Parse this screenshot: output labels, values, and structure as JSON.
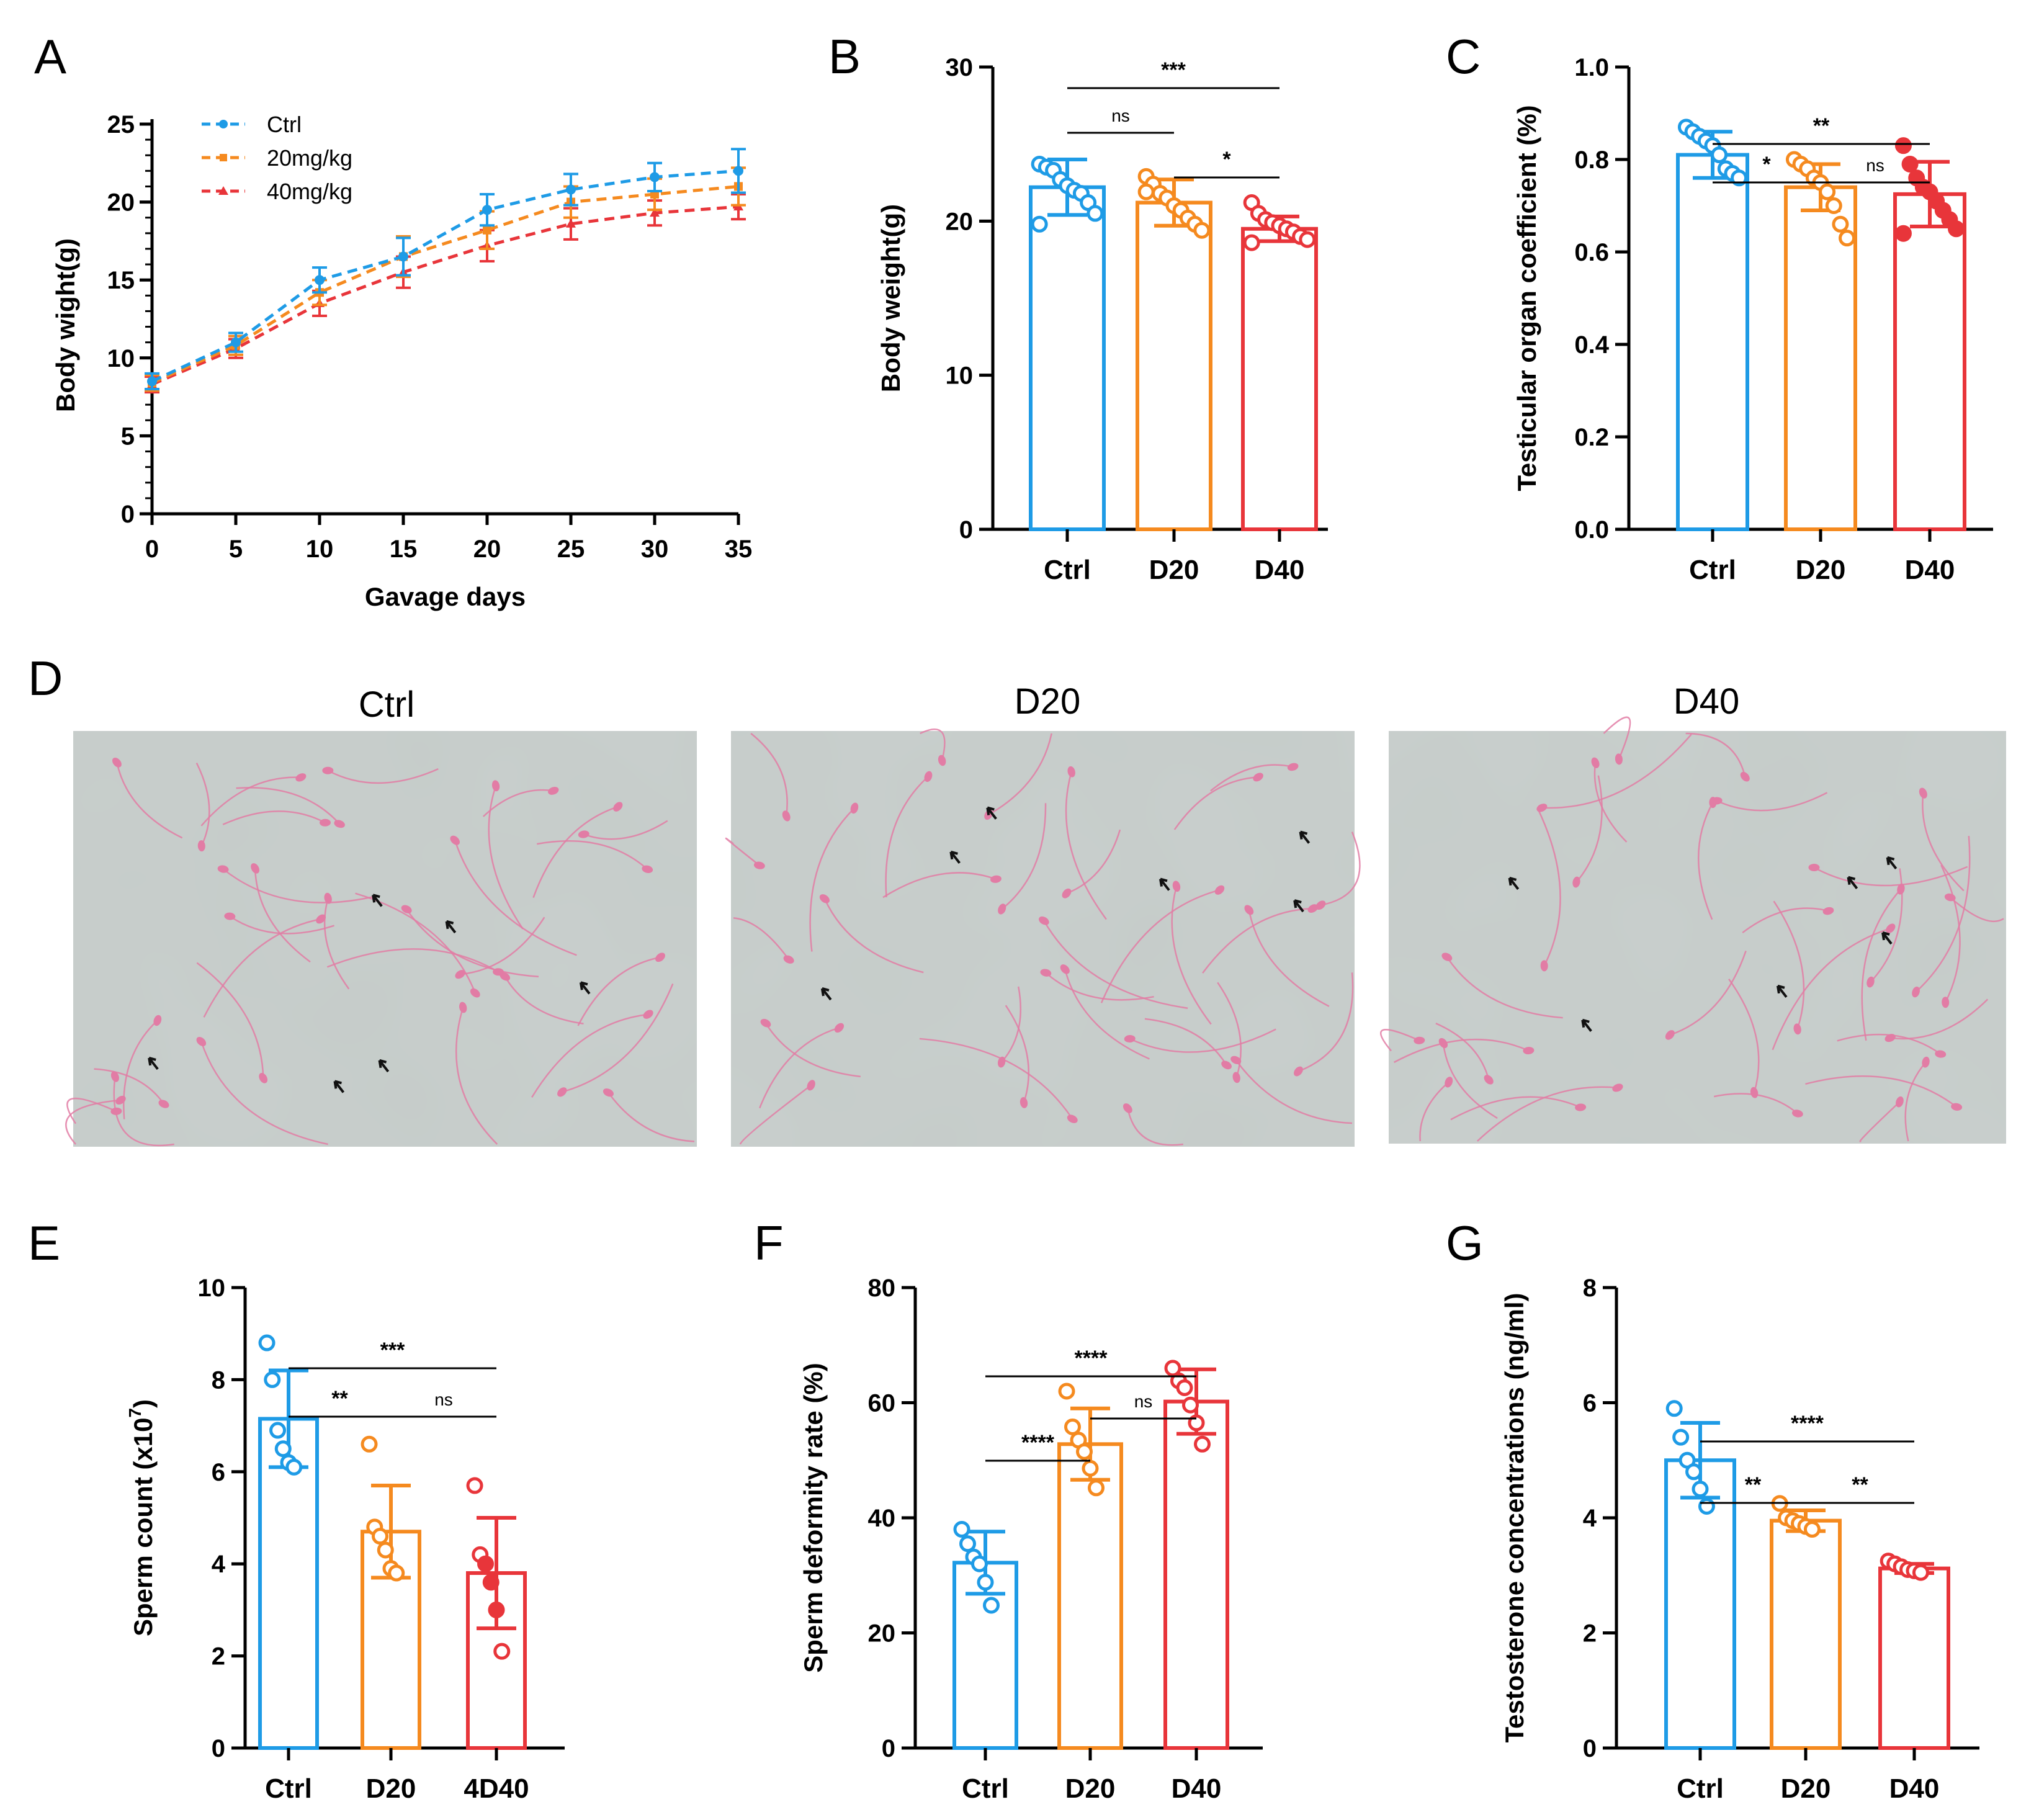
{
  "colors": {
    "ctrl": "#1e9be6",
    "d20": "#f58a1f",
    "d40": "#e8353a",
    "stain": "#e27ca5",
    "field": "#c9cfcd"
  },
  "panels": {
    "A": "A",
    "B": "B",
    "C": "C",
    "D": "D",
    "E": "E",
    "F": "F",
    "G": "G"
  },
  "micrographs": {
    "titles": [
      "Ctrl",
      "D20",
      "D40"
    ]
  },
  "chart_data": [
    {
      "id": "A",
      "type": "line",
      "xlabel": "Gavage days",
      "ylabel": "Body wight(g)",
      "x": [
        0,
        5,
        10,
        15,
        20,
        25,
        30,
        35
      ],
      "xticks": [
        "0",
        "5",
        "10",
        "15",
        "20",
        "25",
        "30",
        "35"
      ],
      "yticks": [
        "0",
        "5",
        "10",
        "15",
        "20",
        "25"
      ],
      "xlim": [
        0,
        35
      ],
      "ylim": [
        0,
        25
      ],
      "legend_position": "top-left",
      "series": [
        {
          "name": "Ctrl",
          "color_key": "ctrl",
          "values": [
            8.5,
            11.0,
            15.0,
            16.5,
            19.5,
            20.8,
            21.6,
            22.0
          ],
          "sd": [
            0.5,
            0.6,
            0.8,
            1.2,
            1.0,
            1.0,
            0.9,
            1.4
          ]
        },
        {
          "name": "20mg/kg",
          "color_key": "d20",
          "values": [
            8.4,
            10.8,
            14.2,
            16.5,
            18.2,
            20.0,
            20.5,
            21.0
          ],
          "sd": [
            0.5,
            0.6,
            0.8,
            1.3,
            1.2,
            1.0,
            1.0,
            1.2
          ]
        },
        {
          "name": "40mg/kg",
          "color_key": "d40",
          "values": [
            8.3,
            10.6,
            13.5,
            15.5,
            17.2,
            18.6,
            19.3,
            19.7
          ],
          "sd": [
            0.5,
            0.6,
            0.8,
            1.0,
            1.0,
            1.0,
            0.8,
            0.8
          ]
        }
      ]
    },
    {
      "id": "B",
      "type": "bar",
      "ylabel": "Body weight(g)",
      "categories": [
        "Ctrl",
        "D20",
        "D40"
      ],
      "values": [
        22.2,
        21.2,
        19.5
      ],
      "sd": [
        1.8,
        1.5,
        0.8
      ],
      "ylim": [
        0,
        30
      ],
      "yticks": [
        "0",
        "10",
        "20",
        "30"
      ],
      "points": [
        [
          23.7,
          23.5,
          23.3,
          22.7,
          22.3,
          22.0,
          21.8,
          21.2,
          20.5,
          19.8
        ],
        [
          22.9,
          22.4,
          21.8,
          21.5,
          21.0,
          20.7,
          20.2,
          19.8,
          19.4,
          21.9
        ],
        [
          21.2,
          20.5,
          20.1,
          19.9,
          19.7,
          19.5,
          19.3,
          19.0,
          18.8,
          18.6
        ]
      ],
      "significance": [
        {
          "from": 0,
          "to": 1,
          "label": "ns",
          "level": 2
        },
        {
          "from": 1,
          "to": 2,
          "label": "*",
          "level": 1
        },
        {
          "from": 0,
          "to": 2,
          "label": "***",
          "level": 3
        }
      ]
    },
    {
      "id": "C",
      "type": "bar",
      "ylabel": "Testicular organ coefficient (%)",
      "categories": [
        "Ctrl",
        "D20",
        "D40"
      ],
      "values": [
        0.81,
        0.74,
        0.725
      ],
      "sd": [
        0.05,
        0.05,
        0.07
      ],
      "ylim": [
        0,
        1
      ],
      "yticks": [
        "0.0",
        "0.2",
        "0.4",
        "0.6",
        "0.8",
        "1.0"
      ],
      "points": [
        [
          0.87,
          0.86,
          0.85,
          0.84,
          0.83,
          0.81,
          0.78,
          0.77,
          0.76
        ],
        [
          0.8,
          0.79,
          0.78,
          0.76,
          0.75,
          0.73,
          0.7,
          0.66,
          0.63
        ],
        [
          0.83,
          0.79,
          0.76,
          0.74,
          0.73,
          0.71,
          0.69,
          0.67,
          0.65,
          0.64
        ]
      ],
      "significance": [
        {
          "from": 0,
          "to": 1,
          "label": "*",
          "level": 1
        },
        {
          "from": 1,
          "to": 2,
          "label": "ns",
          "level": 1
        },
        {
          "from": 0,
          "to": 2,
          "label": "**",
          "level": 2
        }
      ]
    },
    {
      "id": "E",
      "type": "bar",
      "ylabel": "Sperm count (x10",
      "ylabel_sup": "7",
      "ylabel_end": ")",
      "categories": [
        "Ctrl",
        "D20",
        "4D40"
      ],
      "values": [
        7.15,
        4.7,
        3.8
      ],
      "sd": [
        1.05,
        1.0,
        1.2
      ],
      "ylim": [
        0,
        10
      ],
      "yticks": [
        "0",
        "2",
        "4",
        "6",
        "8",
        "10"
      ],
      "points": [
        [
          8.8,
          8.0,
          6.9,
          6.5,
          6.2,
          6.1
        ],
        [
          6.6,
          4.8,
          4.6,
          4.3,
          3.9,
          3.8
        ],
        [
          5.7,
          4.2,
          4.0,
          3.6,
          3.0,
          2.1
        ]
      ],
      "significance": [
        {
          "from": 0,
          "to": 1,
          "label": "**",
          "level": 1
        },
        {
          "from": 1,
          "to": 2,
          "label": "ns",
          "level": 1
        },
        {
          "from": 0,
          "to": 2,
          "label": "***",
          "level": 2
        }
      ]
    },
    {
      "id": "F",
      "type": "bar",
      "ylabel": "Sperm deformity rate (%)",
      "categories": [
        "Ctrl",
        "D20",
        "D40"
      ],
      "values": [
        32.2,
        52.8,
        60.2
      ],
      "sd": [
        5.4,
        6.2,
        5.6
      ],
      "ylim": [
        0,
        80
      ],
      "yticks": [
        "0",
        "20",
        "40",
        "60",
        "80"
      ],
      "points": [
        [
          38.0,
          35.5,
          33.2,
          32.0,
          28.8,
          24.8
        ],
        [
          62.0,
          55.8,
          53.5,
          51.5,
          48.6,
          45.2
        ],
        [
          66.0,
          63.8,
          62.6,
          59.6,
          56.5,
          52.8
        ]
      ],
      "significance": [
        {
          "from": 0,
          "to": 1,
          "label": "****",
          "level": 1
        },
        {
          "from": 1,
          "to": 2,
          "label": "ns",
          "level": 2
        },
        {
          "from": 0,
          "to": 2,
          "label": "****",
          "level": 3
        }
      ]
    },
    {
      "id": "G",
      "type": "bar",
      "ylabel": "Testosterone concentrations (ng/ml)",
      "categories": [
        "Ctrl",
        "D20",
        "D40"
      ],
      "values": [
        5.0,
        3.95,
        3.12
      ],
      "sd": [
        0.65,
        0.18,
        0.08
      ],
      "ylim": [
        0,
        8
      ],
      "yticks": [
        "0",
        "2",
        "4",
        "6",
        "8"
      ],
      "points": [
        [
          5.9,
          5.4,
          5.0,
          4.8,
          4.5,
          4.2
        ],
        [
          4.25,
          4.0,
          3.95,
          3.9,
          3.85,
          3.8
        ],
        [
          3.25,
          3.2,
          3.15,
          3.1,
          3.08,
          3.05
        ]
      ],
      "significance": [
        {
          "from": 0,
          "to": 1,
          "label": "**",
          "level": 1
        },
        {
          "from": 1,
          "to": 2,
          "label": "**",
          "level": 1
        },
        {
          "from": 0,
          "to": 2,
          "label": "****",
          "level": 2
        }
      ]
    }
  ]
}
